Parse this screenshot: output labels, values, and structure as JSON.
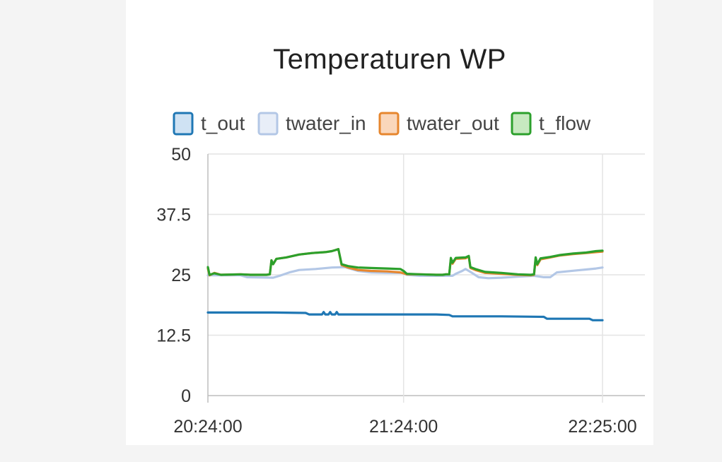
{
  "chart_data": {
    "type": "line",
    "title": "Temperaturen WP",
    "xlabel": "",
    "ylabel": "",
    "ylim": [
      0,
      50
    ],
    "yticks": [
      "0",
      "12.5",
      "25",
      "37.5",
      "50"
    ],
    "xticks": [
      "20:24:00",
      "21:24:00",
      "22:25:00"
    ],
    "xrange_minutes": [
      0,
      121
    ],
    "grid": true,
    "legend_position": "top",
    "series": [
      {
        "name": "t_out",
        "color": "#1f77b4",
        "fill": "#cfe2f3",
        "points": [
          [
            0,
            17.2
          ],
          [
            10,
            17.2
          ],
          [
            20,
            17.2
          ],
          [
            30,
            17.1
          ],
          [
            31,
            16.8
          ],
          [
            35,
            16.8
          ],
          [
            35.5,
            17.3
          ],
          [
            36,
            16.8
          ],
          [
            37,
            16.8
          ],
          [
            37.5,
            17.3
          ],
          [
            38,
            16.8
          ],
          [
            39,
            16.8
          ],
          [
            39.5,
            17.3
          ],
          [
            40,
            16.8
          ],
          [
            50,
            16.8
          ],
          [
            60,
            16.8
          ],
          [
            70,
            16.8
          ],
          [
            74,
            16.7
          ],
          [
            75,
            16.4
          ],
          [
            90,
            16.4
          ],
          [
            103,
            16.3
          ],
          [
            104,
            15.9
          ],
          [
            117,
            15.9
          ],
          [
            118,
            15.6
          ],
          [
            121,
            15.6
          ]
        ]
      },
      {
        "name": "twater_in",
        "color": "#b3c7e6",
        "fill": "#e8eef8",
        "points": [
          [
            0,
            24.9
          ],
          [
            10,
            24.9
          ],
          [
            12,
            24.5
          ],
          [
            20,
            24.4
          ],
          [
            22,
            24.8
          ],
          [
            25,
            25.5
          ],
          [
            28,
            26.0
          ],
          [
            33,
            26.2
          ],
          [
            38,
            26.5
          ],
          [
            42,
            26.6
          ],
          [
            44,
            26.2
          ],
          [
            46,
            25.8
          ],
          [
            50,
            25.5
          ],
          [
            55,
            25.4
          ],
          [
            60,
            25.4
          ],
          [
            61,
            25.0
          ],
          [
            65,
            24.8
          ],
          [
            70,
            24.8
          ],
          [
            75,
            24.8
          ],
          [
            76,
            25.2
          ],
          [
            78,
            25.8
          ],
          [
            79,
            26.2
          ],
          [
            81,
            25.4
          ],
          [
            83,
            24.5
          ],
          [
            86,
            24.3
          ],
          [
            90,
            24.4
          ],
          [
            95,
            24.6
          ],
          [
            100,
            24.8
          ],
          [
            103,
            24.5
          ],
          [
            105,
            24.5
          ],
          [
            107,
            25.5
          ],
          [
            110,
            25.7
          ],
          [
            113,
            25.9
          ],
          [
            116,
            26.1
          ],
          [
            119,
            26.3
          ],
          [
            121,
            26.5
          ]
        ]
      },
      {
        "name": "twater_out",
        "color": "#e6862e",
        "fill": "#fad7bb",
        "points": [
          [
            0,
            26.3
          ],
          [
            0.5,
            24.9
          ],
          [
            2,
            25.4
          ],
          [
            4,
            25.0
          ],
          [
            10,
            25.1
          ],
          [
            13,
            25.0
          ],
          [
            18,
            25.0
          ],
          [
            19,
            25.1
          ],
          [
            19.5,
            28.0
          ],
          [
            20,
            27.2
          ],
          [
            21,
            28.3
          ],
          [
            24,
            28.6
          ],
          [
            28,
            29.2
          ],
          [
            32,
            29.5
          ],
          [
            36,
            29.7
          ],
          [
            38,
            29.9
          ],
          [
            39,
            30.1
          ],
          [
            40,
            30.3
          ],
          [
            41,
            27.0
          ],
          [
            43,
            26.5
          ],
          [
            46,
            26.0
          ],
          [
            50,
            25.8
          ],
          [
            55,
            25.7
          ],
          [
            59,
            25.5
          ],
          [
            61,
            25.1
          ],
          [
            65,
            25.1
          ],
          [
            70,
            25.0
          ],
          [
            72,
            25.0
          ],
          [
            73,
            25.1
          ],
          [
            74,
            25.1
          ],
          [
            74.5,
            28.3
          ],
          [
            75,
            27.3
          ],
          [
            76,
            28.3
          ],
          [
            79,
            28.4
          ],
          [
            80,
            28.8
          ],
          [
            80.5,
            26.4
          ],
          [
            82,
            26.0
          ],
          [
            85,
            25.4
          ],
          [
            90,
            25.2
          ],
          [
            95,
            25.0
          ],
          [
            99,
            24.9
          ],
          [
            100,
            25.0
          ],
          [
            100.5,
            28.5
          ],
          [
            101,
            27.0
          ],
          [
            102,
            28.2
          ],
          [
            105,
            28.6
          ],
          [
            108,
            29.0
          ],
          [
            112,
            29.3
          ],
          [
            116,
            29.5
          ],
          [
            119,
            29.7
          ],
          [
            121,
            29.8
          ]
        ]
      },
      {
        "name": "t_flow",
        "color": "#2ca02c",
        "fill": "#c7e9c0",
        "points": [
          [
            0,
            26.6
          ],
          [
            0.5,
            25.0
          ],
          [
            2,
            25.3
          ],
          [
            4,
            25.0
          ],
          [
            10,
            25.1
          ],
          [
            13,
            25.0
          ],
          [
            18,
            25.0
          ],
          [
            19,
            25.1
          ],
          [
            19.5,
            28.0
          ],
          [
            20,
            27.2
          ],
          [
            21,
            28.3
          ],
          [
            24,
            28.6
          ],
          [
            28,
            29.2
          ],
          [
            32,
            29.5
          ],
          [
            36,
            29.7
          ],
          [
            38,
            29.9
          ],
          [
            39,
            30.1
          ],
          [
            40,
            30.3
          ],
          [
            41,
            27.2
          ],
          [
            43,
            26.8
          ],
          [
            46,
            26.5
          ],
          [
            50,
            26.4
          ],
          [
            55,
            26.3
          ],
          [
            59,
            26.2
          ],
          [
            60,
            25.8
          ],
          [
            61,
            25.2
          ],
          [
            65,
            25.1
          ],
          [
            70,
            25.0
          ],
          [
            72,
            25.0
          ],
          [
            73,
            25.1
          ],
          [
            74,
            25.1
          ],
          [
            74.5,
            28.5
          ],
          [
            75,
            27.5
          ],
          [
            76,
            28.5
          ],
          [
            79,
            28.6
          ],
          [
            80,
            28.9
          ],
          [
            80.5,
            26.6
          ],
          [
            82,
            26.2
          ],
          [
            85,
            25.6
          ],
          [
            90,
            25.4
          ],
          [
            95,
            25.1
          ],
          [
            99,
            25.0
          ],
          [
            100,
            25.1
          ],
          [
            100.5,
            28.6
          ],
          [
            101,
            27.2
          ],
          [
            102,
            28.4
          ],
          [
            105,
            28.7
          ],
          [
            108,
            29.1
          ],
          [
            112,
            29.4
          ],
          [
            116,
            29.6
          ],
          [
            119,
            29.9
          ],
          [
            121,
            30.0
          ]
        ]
      }
    ]
  }
}
